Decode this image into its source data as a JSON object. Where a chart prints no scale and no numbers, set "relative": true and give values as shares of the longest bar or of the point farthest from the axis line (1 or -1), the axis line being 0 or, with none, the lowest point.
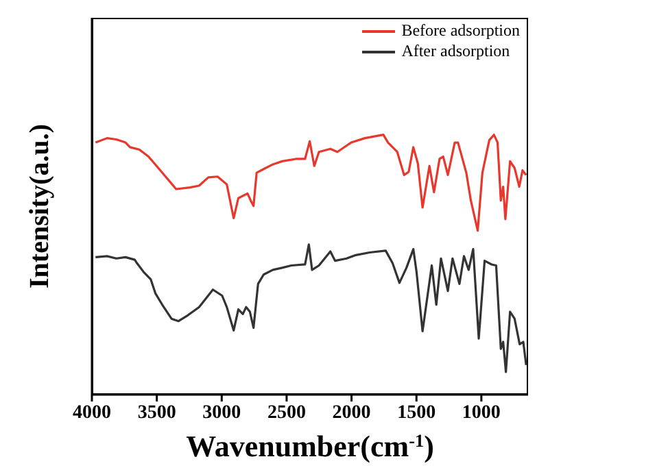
{
  "chart_data": {
    "type": "line",
    "xlabel": "Wavenumber(cm$^{-1}$)",
    "ylabel": "Intensity(a.u.)",
    "relative": true,
    "xlim": [
      4000,
      640
    ],
    "xticks": [
      4000,
      3500,
      3000,
      2500,
      2000,
      1500,
      1000
    ],
    "legend": "top right",
    "grid": false,
    "marker": "none",
    "line_style": "solid",
    "series": [
      {
        "name": "Before adsorption",
        "color": "#e8372c",
        "x": [
          3972,
          3883,
          3812,
          3741,
          3706,
          3635,
          3564,
          3458,
          3351,
          3245,
          3174,
          3103,
          3032,
          2961,
          2908,
          2872,
          2801,
          2777,
          2755,
          2731,
          2677,
          2606,
          2535,
          2429,
          2358,
          2322,
          2287,
          2251,
          2163,
          2109,
          2003,
          1897,
          1755,
          1719,
          1648,
          1595,
          1560,
          1524,
          1489,
          1453,
          1400,
          1365,
          1322,
          1294,
          1258,
          1205,
          1180,
          1116,
          1081,
          1028,
          992,
          939,
          903,
          875,
          850,
          832,
          815,
          779,
          744,
          708,
          683,
          655
        ],
        "values": [
          0.97,
          0.987,
          0.982,
          0.97,
          0.952,
          0.943,
          0.916,
          0.854,
          0.791,
          0.797,
          0.804,
          0.836,
          0.839,
          0.809,
          0.679,
          0.756,
          0.774,
          0.747,
          0.726,
          0.854,
          0.868,
          0.886,
          0.898,
          0.907,
          0.907,
          0.975,
          0.88,
          0.934,
          0.946,
          0.934,
          0.97,
          0.987,
          1.0,
          0.97,
          0.934,
          0.845,
          0.857,
          0.952,
          0.889,
          0.72,
          0.88,
          0.779,
          0.907,
          0.916,
          0.845,
          0.97,
          0.97,
          0.854,
          0.747,
          0.631,
          0.854,
          0.979,
          1.0,
          0.97,
          0.747,
          0.8,
          0.675,
          0.898,
          0.872,
          0.8,
          0.863,
          0.845
        ]
      },
      {
        "name": "After adsorption",
        "color": "#333333",
        "x": [
          3972,
          3883,
          3812,
          3741,
          3670,
          3653,
          3600,
          3547,
          3511,
          3458,
          3387,
          3333,
          3262,
          3174,
          3068,
          2997,
          2961,
          2908,
          2872,
          2837,
          2812,
          2783,
          2755,
          2720,
          2677,
          2606,
          2535,
          2464,
          2358,
          2329,
          2304,
          2251,
          2163,
          2127,
          2038,
          1967,
          1861,
          1737,
          1684,
          1631,
          1577,
          1524,
          1499,
          1453,
          1382,
          1347,
          1311,
          1258,
          1222,
          1169,
          1134,
          1098,
          1063,
          1020,
          975,
          921,
          886,
          850,
          832,
          811,
          779,
          744,
          705,
          677,
          655
        ],
        "values": [
          0.529,
          0.533,
          0.524,
          0.529,
          0.519,
          0.506,
          0.471,
          0.444,
          0.39,
          0.346,
          0.292,
          0.283,
          0.305,
          0.337,
          0.404,
          0.381,
          0.337,
          0.247,
          0.328,
          0.31,
          0.337,
          0.319,
          0.257,
          0.426,
          0.462,
          0.48,
          0.488,
          0.497,
          0.501,
          0.578,
          0.48,
          0.497,
          0.551,
          0.515,
          0.524,
          0.537,
          0.547,
          0.554,
          0.506,
          0.43,
          0.488,
          0.56,
          0.471,
          0.244,
          0.497,
          0.346,
          0.524,
          0.399,
          0.524,
          0.426,
          0.533,
          0.48,
          0.56,
          0.216,
          0.515,
          0.501,
          0.497,
          0.176,
          0.203,
          0.087,
          0.319,
          0.292,
          0.194,
          0.203,
          0.114
        ]
      }
    ]
  }
}
